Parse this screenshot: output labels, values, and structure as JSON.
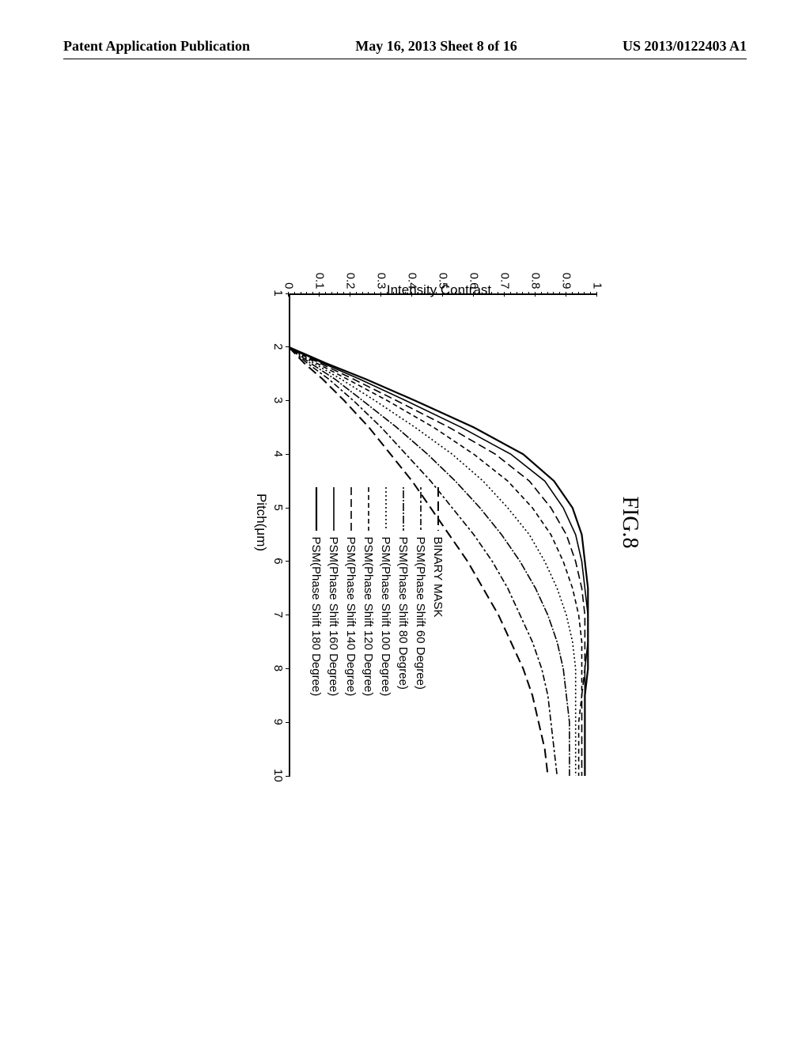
{
  "header": {
    "left": "Patent Application Publication",
    "center": "May 16, 2013  Sheet 8 of 16",
    "right": "US 2013/0122403 A1"
  },
  "figure": {
    "title": "FIG.8",
    "xlabel": "Pitch(μm)",
    "ylabel": "Intensity Contrast",
    "xlim": [
      1,
      10
    ],
    "ylim": [
      0,
      1
    ],
    "xticks": [
      1,
      2,
      3,
      4,
      5,
      6,
      7,
      8,
      9,
      10
    ],
    "yticks": [
      0,
      0.1,
      0.2,
      0.3,
      0.4,
      0.5,
      0.6,
      0.7,
      0.8,
      0.9,
      1
    ],
    "ytick_labels": [
      "0",
      "0.1",
      "0.2",
      "0.3",
      "0.4",
      "0.5",
      "0.6",
      "0.7",
      "0.8",
      "0.9",
      "1"
    ],
    "minor_ticks_per_major": 5,
    "series": [
      {
        "name": "BINARY MASK",
        "dash": "12,6",
        "width": 2,
        "color": "#000000",
        "points": [
          [
            2,
            0
          ],
          [
            2.3,
            0.05
          ],
          [
            2.6,
            0.11
          ],
          [
            3,
            0.18
          ],
          [
            3.5,
            0.26
          ],
          [
            4,
            0.33
          ],
          [
            4.5,
            0.4
          ],
          [
            5,
            0.46
          ],
          [
            5.5,
            0.52
          ],
          [
            6,
            0.58
          ],
          [
            6.5,
            0.63
          ],
          [
            7,
            0.68
          ],
          [
            7.5,
            0.72
          ],
          [
            8,
            0.76
          ],
          [
            8.5,
            0.79
          ],
          [
            9,
            0.81
          ],
          [
            9.5,
            0.83
          ],
          [
            10,
            0.84
          ]
        ]
      },
      {
        "name": "PSM(Phase Shift 60 Degree)",
        "dash": "3,3,8,3",
        "width": 1.6,
        "color": "#000000",
        "points": [
          [
            2,
            0
          ],
          [
            2.3,
            0.06
          ],
          [
            2.6,
            0.13
          ],
          [
            3,
            0.21
          ],
          [
            3.5,
            0.3
          ],
          [
            4,
            0.38
          ],
          [
            4.5,
            0.46
          ],
          [
            5,
            0.53
          ],
          [
            5.5,
            0.6
          ],
          [
            6,
            0.66
          ],
          [
            6.5,
            0.71
          ],
          [
            7,
            0.75
          ],
          [
            7.5,
            0.79
          ],
          [
            8,
            0.82
          ],
          [
            8.5,
            0.84
          ],
          [
            9,
            0.85
          ],
          [
            9.5,
            0.86
          ],
          [
            10,
            0.87
          ]
        ]
      },
      {
        "name": "PSM(Phase Shift 80 Degree)",
        "dash": "2,2,10,2",
        "width": 1.6,
        "color": "#000000",
        "points": [
          [
            2,
            0
          ],
          [
            2.3,
            0.07
          ],
          [
            2.6,
            0.15
          ],
          [
            3,
            0.24
          ],
          [
            3.5,
            0.35
          ],
          [
            4,
            0.45
          ],
          [
            4.5,
            0.54
          ],
          [
            5,
            0.62
          ],
          [
            5.5,
            0.69
          ],
          [
            6,
            0.75
          ],
          [
            6.5,
            0.8
          ],
          [
            7,
            0.84
          ],
          [
            7.5,
            0.87
          ],
          [
            8,
            0.89
          ],
          [
            8.5,
            0.9
          ],
          [
            9,
            0.91
          ],
          [
            9.5,
            0.91
          ],
          [
            10,
            0.91
          ]
        ]
      },
      {
        "name": "PSM(Phase Shift 100 Degree)",
        "dash": "2,3",
        "width": 1.6,
        "color": "#000000",
        "points": [
          [
            2,
            0
          ],
          [
            2.3,
            0.08
          ],
          [
            2.6,
            0.17
          ],
          [
            3,
            0.28
          ],
          [
            3.5,
            0.41
          ],
          [
            4,
            0.53
          ],
          [
            4.5,
            0.63
          ],
          [
            5,
            0.71
          ],
          [
            5.5,
            0.78
          ],
          [
            6,
            0.83
          ],
          [
            6.5,
            0.87
          ],
          [
            7,
            0.9
          ],
          [
            7.5,
            0.92
          ],
          [
            8,
            0.93
          ],
          [
            8.5,
            0.93
          ],
          [
            9,
            0.93
          ],
          [
            9.5,
            0.93
          ],
          [
            10,
            0.93
          ]
        ]
      },
      {
        "name": "PSM(Phase Shift 120 Degree)",
        "dash": "6,4",
        "width": 1.6,
        "color": "#000000",
        "points": [
          [
            2,
            0
          ],
          [
            2.3,
            0.09
          ],
          [
            2.6,
            0.19
          ],
          [
            3,
            0.32
          ],
          [
            3.5,
            0.47
          ],
          [
            4,
            0.6
          ],
          [
            4.5,
            0.71
          ],
          [
            5,
            0.79
          ],
          [
            5.5,
            0.85
          ],
          [
            6,
            0.89
          ],
          [
            6.5,
            0.92
          ],
          [
            7,
            0.94
          ],
          [
            7.5,
            0.95
          ],
          [
            8,
            0.95
          ],
          [
            8.5,
            0.95
          ],
          [
            9,
            0.94
          ],
          [
            9.5,
            0.94
          ],
          [
            10,
            0.94
          ]
        ]
      },
      {
        "name": "PSM(Phase Shift 140 Degree)",
        "dash": "10,5",
        "width": 1.6,
        "color": "#000000",
        "points": [
          [
            2,
            0
          ],
          [
            2.3,
            0.1
          ],
          [
            2.6,
            0.21
          ],
          [
            3,
            0.35
          ],
          [
            3.5,
            0.52
          ],
          [
            4,
            0.67
          ],
          [
            4.5,
            0.78
          ],
          [
            5,
            0.85
          ],
          [
            5.5,
            0.9
          ],
          [
            6,
            0.93
          ],
          [
            6.5,
            0.95
          ],
          [
            7,
            0.96
          ],
          [
            7.5,
            0.96
          ],
          [
            8,
            0.96
          ],
          [
            8.5,
            0.95
          ],
          [
            9,
            0.95
          ],
          [
            9.5,
            0.95
          ],
          [
            10,
            0.95
          ]
        ]
      },
      {
        "name": "PSM(Phase Shift 160 Degree)",
        "dash": "none",
        "width": 1.6,
        "color": "#000000",
        "points": [
          [
            2,
            0
          ],
          [
            2.3,
            0.11
          ],
          [
            2.6,
            0.23
          ],
          [
            3,
            0.38
          ],
          [
            3.5,
            0.56
          ],
          [
            4,
            0.72
          ],
          [
            4.5,
            0.83
          ],
          [
            5,
            0.89
          ],
          [
            5.5,
            0.93
          ],
          [
            6,
            0.95
          ],
          [
            6.5,
            0.96
          ],
          [
            7,
            0.97
          ],
          [
            7.5,
            0.97
          ],
          [
            8,
            0.96
          ],
          [
            8.5,
            0.96
          ],
          [
            9,
            0.96
          ],
          [
            9.5,
            0.96
          ],
          [
            10,
            0.96
          ]
        ]
      },
      {
        "name": "PSM(Phase Shift 180 Degree)",
        "dash": "none",
        "width": 2.2,
        "color": "#000000",
        "points": [
          [
            2,
            0
          ],
          [
            2.3,
            0.12
          ],
          [
            2.6,
            0.25
          ],
          [
            3,
            0.41
          ],
          [
            3.5,
            0.6
          ],
          [
            4,
            0.76
          ],
          [
            4.5,
            0.86
          ],
          [
            5,
            0.92
          ],
          [
            5.5,
            0.95
          ],
          [
            6,
            0.96
          ],
          [
            6.5,
            0.97
          ],
          [
            7,
            0.97
          ],
          [
            7.5,
            0.97
          ],
          [
            8,
            0.97
          ],
          [
            8.5,
            0.96
          ],
          [
            9,
            0.96
          ],
          [
            9.5,
            0.96
          ],
          [
            10,
            0.96
          ]
        ]
      }
    ]
  }
}
